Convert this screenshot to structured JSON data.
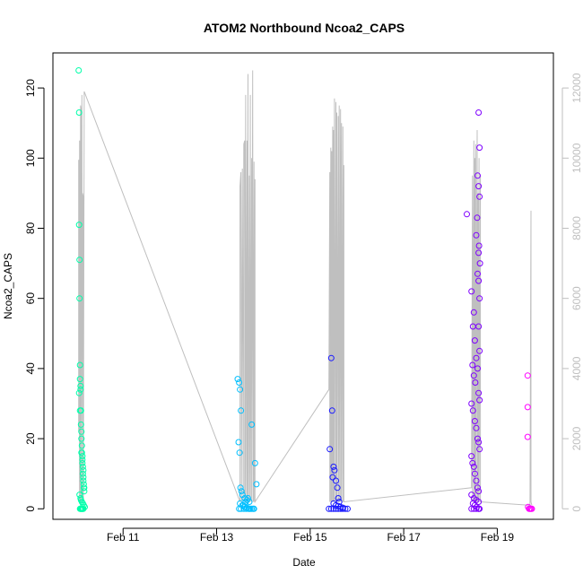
{
  "chart_data": {
    "type": "scatter",
    "title": "ATOM2 Northbound Ncoa2_CAPS",
    "xlabel": "Date",
    "ylabel": "Ncoa2_CAPS",
    "x_ticks": [
      "Feb 11",
      "Feb 13",
      "Feb 15",
      "Feb 17",
      "Feb 19"
    ],
    "y_ticks": [
      "0",
      "20",
      "40",
      "60",
      "80",
      "100",
      "120"
    ],
    "y2_ticks": [
      "0",
      "2000",
      "4000",
      "6000",
      "8000",
      "10000",
      "12000"
    ],
    "ylim": [
      -3,
      130
    ],
    "y2lim": [
      -300,
      13000
    ],
    "xlim_days_feb": [
      9.5,
      20.2
    ],
    "grid": false,
    "series": [
      {
        "color": "#00ffaa",
        "x": [
          10.05,
          10.06,
          10.06,
          10.07,
          10.07,
          10.08,
          10.08,
          10.09,
          10.09,
          10.1,
          10.1,
          10.11,
          10.11,
          10.12,
          10.12,
          10.13,
          10.13,
          10.14,
          10.14,
          10.15,
          10.15,
          10.16,
          10.16,
          10.17,
          10.07,
          10.09,
          10.1,
          10.12,
          10.14,
          10.16,
          10.18,
          10.06,
          10.08,
          10.11,
          10.13,
          10.15,
          10.17,
          10.08,
          10.09,
          10.1,
          10.11,
          10.12,
          10.13,
          10.14,
          10.15
        ],
        "values": [
          125,
          113,
          81,
          71,
          60,
          41,
          37,
          35,
          34,
          28,
          24,
          22,
          20,
          18,
          16,
          15,
          13,
          12,
          10,
          9,
          8,
          7,
          6,
          5,
          4,
          3,
          2.5,
          2,
          1.5,
          1,
          0.5,
          33,
          28,
          16,
          14,
          11,
          6,
          0,
          0,
          0,
          0,
          0,
          0,
          0,
          0
        ]
      },
      {
        "color": "#00bfff",
        "x": [
          13.45,
          13.48,
          13.5,
          13.52,
          13.47,
          13.49,
          13.51,
          13.53,
          13.75,
          13.82,
          13.55,
          13.6,
          13.65,
          13.7,
          13.5,
          13.55,
          13.6,
          13.65,
          13.7,
          13.75,
          13.8,
          13.52,
          13.58,
          13.63,
          13.68,
          13.72,
          13.78,
          13.85,
          13.48,
          13.57,
          13.62,
          13.67
        ],
        "values": [
          37,
          36,
          34,
          28,
          19,
          16,
          6,
          5,
          24,
          13,
          4,
          3,
          2.5,
          2,
          1.5,
          1,
          0.5,
          0.3,
          0,
          0,
          0,
          0,
          0,
          0,
          0,
          0,
          0,
          7,
          0,
          1,
          2,
          3
        ]
      },
      {
        "color": "#1a1aff",
        "x": [
          15.45,
          15.47,
          15.42,
          15.5,
          15.52,
          15.48,
          15.55,
          15.58,
          15.6,
          15.62,
          15.5,
          15.55,
          15.6,
          15.65,
          15.7,
          15.4,
          15.45,
          15.5,
          15.55,
          15.6,
          15.65,
          15.7,
          15.75,
          15.8
        ],
        "values": [
          43,
          28,
          17,
          12,
          11,
          9,
          8,
          6,
          3,
          2,
          1.5,
          1,
          0.8,
          0.5,
          0.3,
          0,
          0,
          0,
          0,
          0,
          0,
          0,
          0,
          0
        ]
      },
      {
        "color": "#7f00ff",
        "x": [
          18.6,
          18.62,
          18.35,
          18.55,
          18.58,
          18.6,
          18.62,
          18.57,
          18.61,
          18.6,
          18.63,
          18.58,
          18.6,
          18.62,
          18.45,
          18.5,
          18.48,
          18.52,
          18.6,
          18.62,
          18.55,
          18.58,
          18.47,
          18.5,
          18.53,
          18.6,
          18.62,
          18.45,
          18.48,
          18.52,
          18.55,
          18.58,
          18.6,
          18.62,
          18.45,
          18.47,
          18.5,
          18.52,
          18.55,
          18.58,
          18.6,
          18.45,
          18.5,
          18.55,
          18.6,
          18.48,
          18.52,
          18.56,
          18.6,
          18.62,
          18.45,
          18.5,
          18.55,
          18.6
        ],
        "values": [
          113,
          103,
          84,
          78,
          95,
          92,
          89,
          83,
          75,
          73,
          70,
          67,
          65,
          60,
          62,
          56,
          52,
          48,
          52,
          45,
          43,
          40,
          41,
          38,
          36,
          33,
          31,
          30,
          28,
          25,
          23,
          20,
          19,
          17,
          15,
          13,
          12,
          10,
          8,
          6,
          5,
          4,
          3,
          2.5,
          2,
          1.5,
          1,
          0.5,
          0,
          0,
          0,
          0,
          0,
          0
        ]
      },
      {
        "color": "#ff00ff",
        "x": [
          19.65,
          19.65,
          19.65,
          19.66,
          19.68,
          19.7,
          19.72,
          19.74
        ],
        "values": [
          38,
          29,
          20.5,
          0.5,
          0,
          0,
          0,
          0
        ]
      }
    ],
    "secondary_series": {
      "color": "#bfbfbf",
      "x": [
        10.05,
        10.05,
        10.06,
        10.07,
        10.07,
        10.08,
        10.08,
        10.09,
        10.1,
        10.1,
        10.12,
        10.12,
        10.13,
        10.13,
        10.15,
        10.15,
        10.17,
        13.5,
        13.5,
        13.52,
        13.53,
        13.55,
        13.55,
        13.57,
        13.58,
        13.6,
        13.6,
        13.62,
        13.62,
        13.65,
        13.65,
        13.67,
        13.67,
        13.7,
        13.7,
        13.72,
        13.72,
        13.75,
        13.75,
        13.77,
        13.78,
        13.8,
        13.8,
        13.82,
        13.82,
        15.4,
        15.42,
        15.42,
        15.44,
        15.44,
        15.46,
        15.46,
        15.48,
        15.48,
        15.5,
        15.5,
        15.52,
        15.52,
        15.55,
        15.55,
        15.57,
        15.57,
        15.6,
        15.6,
        15.62,
        15.62,
        15.65,
        15.65,
        15.67,
        15.67,
        15.7,
        15.7,
        15.72,
        15.72,
        18.45,
        18.47,
        18.47,
        18.5,
        18.5,
        18.52,
        18.52,
        18.54,
        18.54,
        18.57,
        18.57,
        18.59,
        18.59,
        18.61,
        18.61,
        18.64,
        18.64,
        19.7,
        19.72,
        19.72,
        19.74
      ],
      "values": [
        2200,
        9950,
        9850,
        200,
        10500,
        10400,
        200,
        11500,
        11400,
        200,
        11800,
        11700,
        200,
        9000,
        8900,
        200,
        11900,
        200,
        9200,
        9600,
        200,
        9700,
        9650,
        200,
        10400,
        10500,
        200,
        11800,
        200,
        10500,
        200,
        12400,
        200,
        9500,
        200,
        11800,
        200,
        10000,
        200,
        12500,
        200,
        9900,
        200,
        9400,
        200,
        3400,
        9600,
        200,
        10300,
        200,
        10200,
        200,
        10900,
        200,
        10800,
        200,
        11700,
        200,
        11600,
        200,
        11300,
        200,
        11200,
        200,
        11500,
        200,
        11400,
        200,
        11000,
        200,
        10900,
        200,
        9800,
        200,
        600,
        9500,
        200,
        10500,
        200,
        10000,
        200,
        10400,
        200,
        10800,
        200,
        9000,
        200,
        10000,
        200,
        9500,
        200,
        100,
        8500,
        200,
        100
      ]
    }
  }
}
